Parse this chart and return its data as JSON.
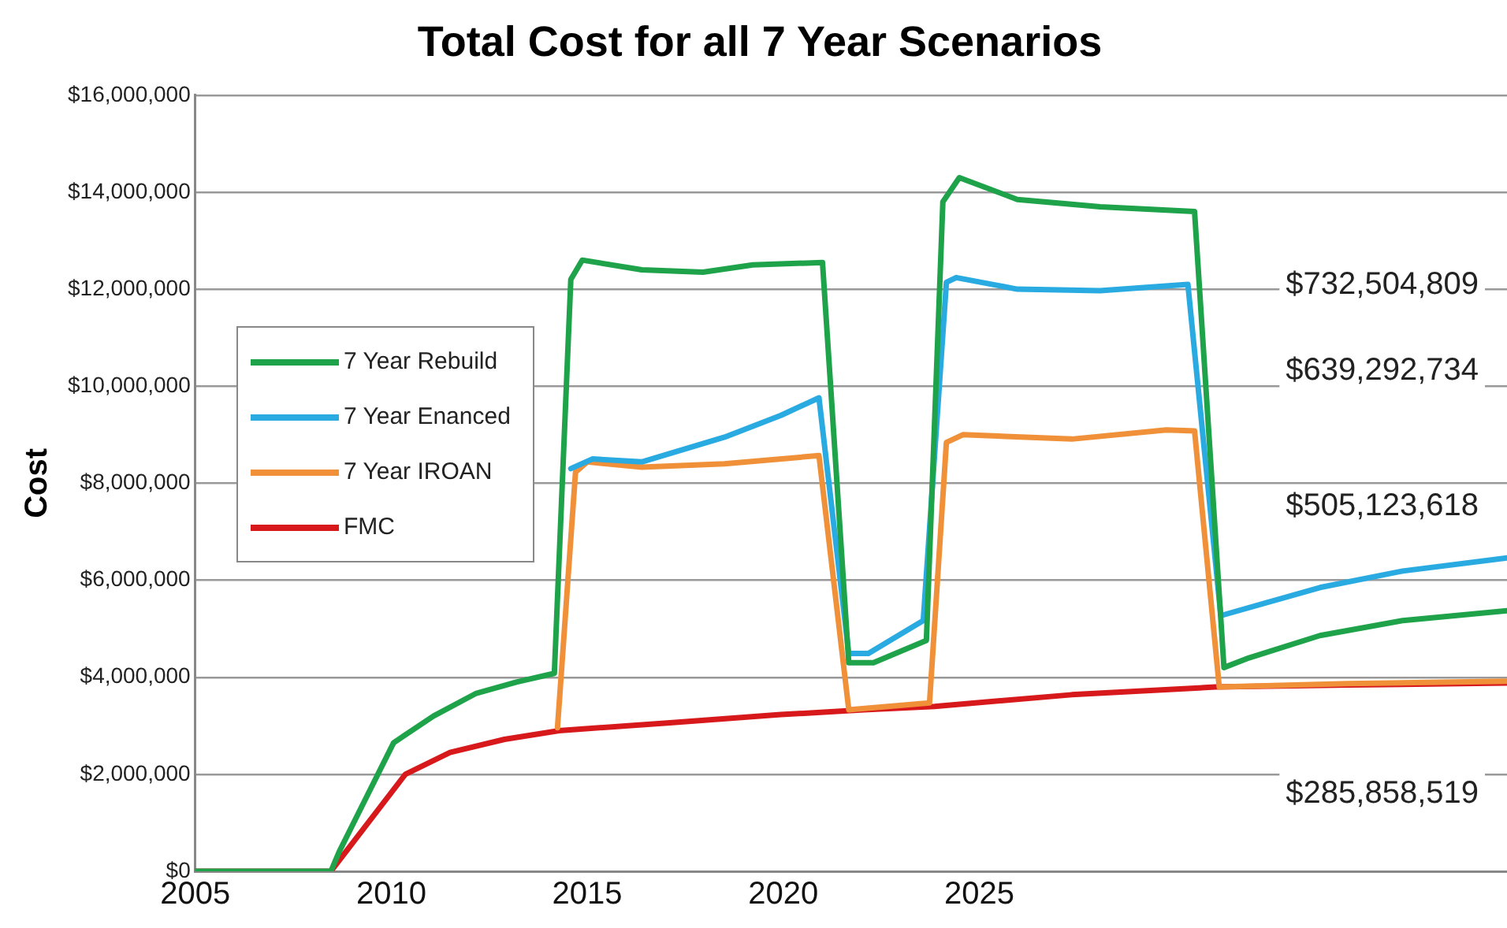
{
  "chart_data": {
    "type": "line",
    "title": "Total Cost for all 7 Year Scenarios",
    "ylabel": "Cost",
    "xlim": [
      2005,
      2038.46
    ],
    "xticks": [
      2005,
      2010,
      2015,
      2020,
      2025
    ],
    "ylim": [
      0,
      16000000
    ],
    "yticks": [
      {
        "value": 0,
        "label": "$0"
      },
      {
        "value": 2000000,
        "label": "$2,000,000"
      },
      {
        "value": 4000000,
        "label": "$4,000,000"
      },
      {
        "value": 6000000,
        "label": "$6,000,000"
      },
      {
        "value": 8000000,
        "label": "$8,000,000"
      },
      {
        "value": 10000000,
        "label": "$10,000,000"
      },
      {
        "value": 12000000,
        "label": "$12,000,000"
      },
      {
        "value": 14000000,
        "label": "$14,000,000"
      },
      {
        "value": 16000000,
        "label": "$16,000,000"
      }
    ],
    "grid": "y",
    "legend": "left",
    "marker": "none",
    "line_style": "solid",
    "series": [
      {
        "name": "7 Year Rebuild",
        "color": "#1fa34a",
        "x": [
          2005,
          2008.46,
          2008.67,
          2010.06,
          2011.08,
          2012.17,
          2013.19,
          2014.16,
          2014.58,
          2014.87,
          2016.39,
          2017.95,
          2019.22,
          2021.0,
          2021.67,
          2022.3,
          2023.65,
          2024.07,
          2024.49,
          2025.97,
          2028.08,
          2030.49,
          2031.24,
          2031.88,
          2033.69,
          2035.8,
          2038.46
        ],
        "values": [
          0,
          0,
          400000,
          2650000,
          3200000,
          3670000,
          3900000,
          4080000,
          12200000,
          12600000,
          12400000,
          12350000,
          12500000,
          12550000,
          4300000,
          4300000,
          4760000,
          13800000,
          14300000,
          13850000,
          13700000,
          13600000,
          4200000,
          4400000,
          4860000,
          5170000,
          5370000
        ]
      },
      {
        "name": "7 Year Enanced",
        "color": "#29abe2",
        "x": [
          2014.58,
          2015.13,
          2016.39,
          2018.5,
          2019.94,
          2020.91,
          2021.67,
          2022.17,
          2023.57,
          2024.16,
          2024.41,
          2025.97,
          2028.08,
          2030.32,
          2031.16,
          2033.69,
          2035.8,
          2038.46
        ],
        "values": [
          8300000,
          8500000,
          8440000,
          8950000,
          9400000,
          9760000,
          4490000,
          4490000,
          5170000,
          12140000,
          12240000,
          12000000,
          11970000,
          12100000,
          5270000,
          5850000,
          6190000,
          6460000
        ]
      },
      {
        "name": "7 Year IROAN",
        "color": "#f0913a",
        "x": [
          2014.24,
          2014.7,
          2015.0,
          2016.39,
          2018.5,
          2020.91,
          2021.67,
          2023.73,
          2024.16,
          2024.58,
          2027.36,
          2029.77,
          2030.49,
          2031.12,
          2034.41,
          2038.46
        ],
        "values": [
          2960000,
          8230000,
          8440000,
          8330000,
          8400000,
          8570000,
          3330000,
          3470000,
          8840000,
          9000000,
          8910000,
          9100000,
          9080000,
          3800000,
          3870000,
          3920000
        ]
      },
      {
        "name": "FMC",
        "color": "#d7191c",
        "x": [
          2005,
          2008.46,
          2010.36,
          2011.5,
          2012.89,
          2014.28,
          2017.11,
          2019.94,
          2022.05,
          2023.86,
          2027.36,
          2031.03,
          2034.41,
          2038.46
        ],
        "values": [
          0,
          0,
          2000000,
          2450000,
          2720000,
          2900000,
          3060000,
          3230000,
          3330000,
          3400000,
          3640000,
          3800000,
          3840000,
          3880000
        ]
      }
    ],
    "annotations": [
      "$732,504,809",
      "$639,292,734",
      "$505,123,618",
      "$285,858,519"
    ]
  }
}
